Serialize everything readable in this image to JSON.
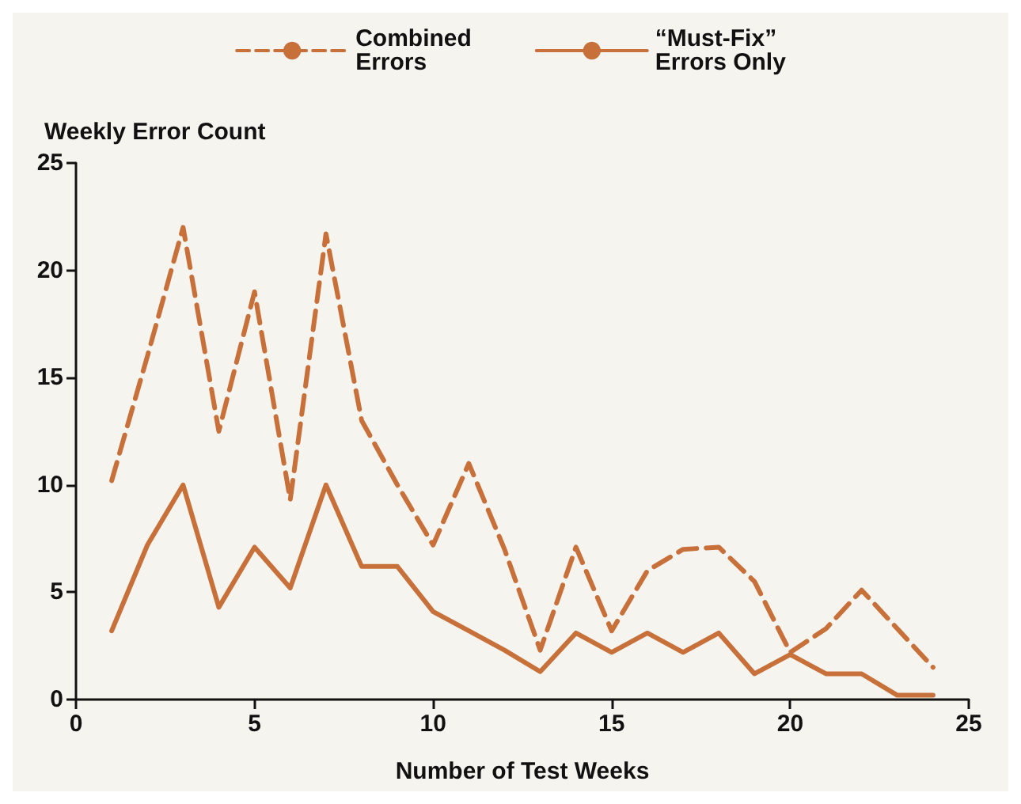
{
  "chart_data": {
    "type": "line",
    "xlabel": "Number of Test Weeks",
    "ylabel": "Weekly Error Count",
    "x": [
      1,
      2,
      3,
      4,
      5,
      6,
      7,
      8,
      9,
      10,
      11,
      12,
      13,
      14,
      15,
      16,
      17,
      18,
      19,
      20,
      21,
      22,
      23,
      24
    ],
    "series": [
      {
        "name": "Combined\nErrors",
        "color": "#c8703a",
        "line_style": "dashed",
        "values": [
          10.2,
          16,
          22,
          12.5,
          19,
          9.3,
          21.7,
          13,
          10,
          7.2,
          11,
          7,
          2.3,
          7.1,
          3.2,
          6,
          7,
          7.1,
          5.5,
          2.2,
          3.3,
          5.1,
          3.3,
          1.5
        ]
      },
      {
        "name": "“Must-Fix”\nErrors Only",
        "color": "#c8703a",
        "line_style": "solid",
        "values": [
          3.2,
          7.2,
          10,
          4.3,
          7.1,
          5.2,
          10,
          6.2,
          6.2,
          4.1,
          3.2,
          2.3,
          1.3,
          3.1,
          2.2,
          3.1,
          2.2,
          3.1,
          1.2,
          2.1,
          1.2,
          1.2,
          0.2,
          0.2
        ]
      }
    ],
    "xlim": [
      0,
      25
    ],
    "xticks": [
      0,
      5,
      10,
      15,
      20,
      25
    ],
    "ylim": [
      0,
      25
    ],
    "yticks": [
      0,
      5,
      10,
      15,
      20,
      25
    ],
    "grid": false,
    "legend": "top",
    "marker": "none"
  }
}
